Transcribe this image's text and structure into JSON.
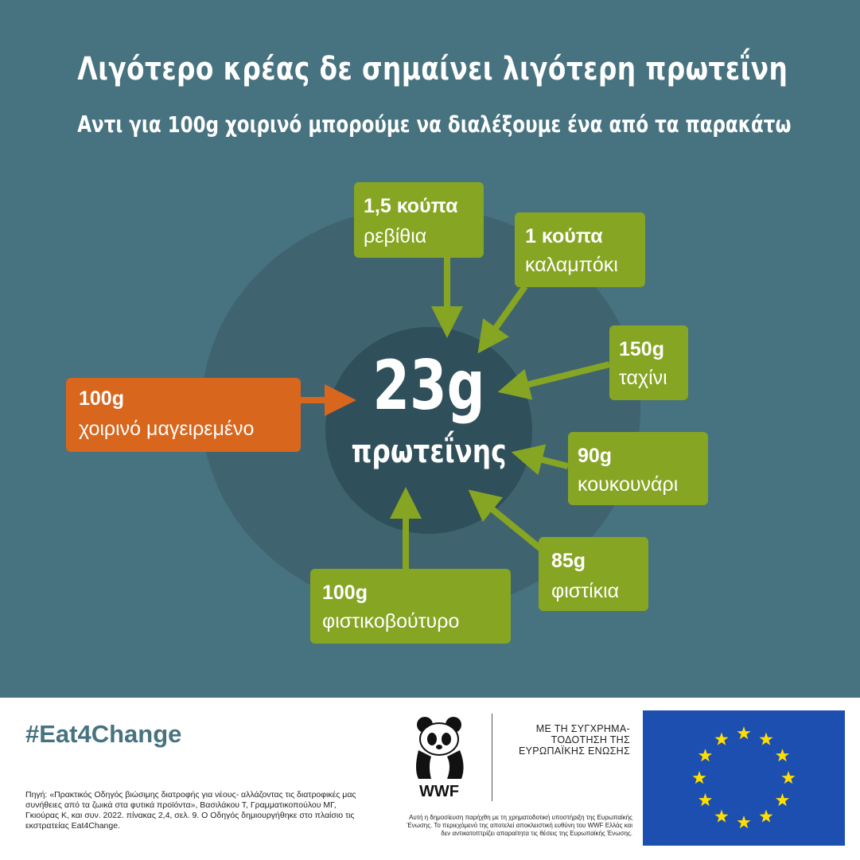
{
  "header": {
    "title": "Λιγότερο κρέας δε σημαίνει λιγότερη πρωτεΐνη",
    "subtitle": "Αντι για 100g χοιρινό μπορούμε να διαλέξουμε ένα από τα παρακάτω"
  },
  "center": {
    "value": "23g",
    "label": "πρωτεΐνης"
  },
  "meat_option": {
    "quantity": "100g",
    "food": "χοιρινό μαγειρεμένο",
    "color": "#d8661c"
  },
  "alternatives": [
    {
      "quantity": "1,5 κούπα",
      "food": "ρεβίθια"
    },
    {
      "quantity": "1 κούπα",
      "food": "καλαμπόκι"
    },
    {
      "quantity": "150g",
      "food": "ταχίνι"
    },
    {
      "quantity": "90g",
      "food": "κουκουνάρι"
    },
    {
      "quantity": "85g",
      "food": "φιστίκια"
    },
    {
      "quantity": "100g",
      "food": "φιστικοβούτυρο"
    }
  ],
  "colors": {
    "background": "#47727f",
    "green": "#86a523",
    "orange": "#d8661c",
    "eu_blue": "#1c4fb0",
    "eu_star": "#ffdd00"
  },
  "footer": {
    "hashtag": "#Eat4Change",
    "source": "Πηγή: «Πρακτικός Οδηγός βιώσιμης διατροφής για νέους- αλλάζοντας τις διατροφικές μας συνήθειες από τα ζωικά στα φυτικά προϊόντα», Βασιλάκου Τ, Γραμματικοπούλου ΜΓ, Γκιούρας Κ, και συν. 2022. πίνακας 2,4, σελ. 9. Ο Οδηγός δημιουργήθηκε στο πλαίσιο τις εκστρατείας Eat4Change.",
    "wwf_logo": "WWF",
    "cofunding": "ΜΕ ΤΗ ΣΥΓΧΡΗΜΑ-ΤΟΔΟΤΗΣΗ ΤΗΣ ΕΥΡΩΠΑΪΚΗΣ ΕΝΩΣΗΣ",
    "disclaimer": "Αυτή η δημοσίευση παρήχθη με τη χρηματοδοτική υποστήριξη της Ευρωπαϊκής Ένωσης. Το περιεχόμενό της αποτελεί αποκλειστική ευθύνη του WWF Ελλάς και δεν αντικατοπτρίζει απαραίτητα τις θέσεις της Ευρωπαϊκής Ένωσης."
  }
}
